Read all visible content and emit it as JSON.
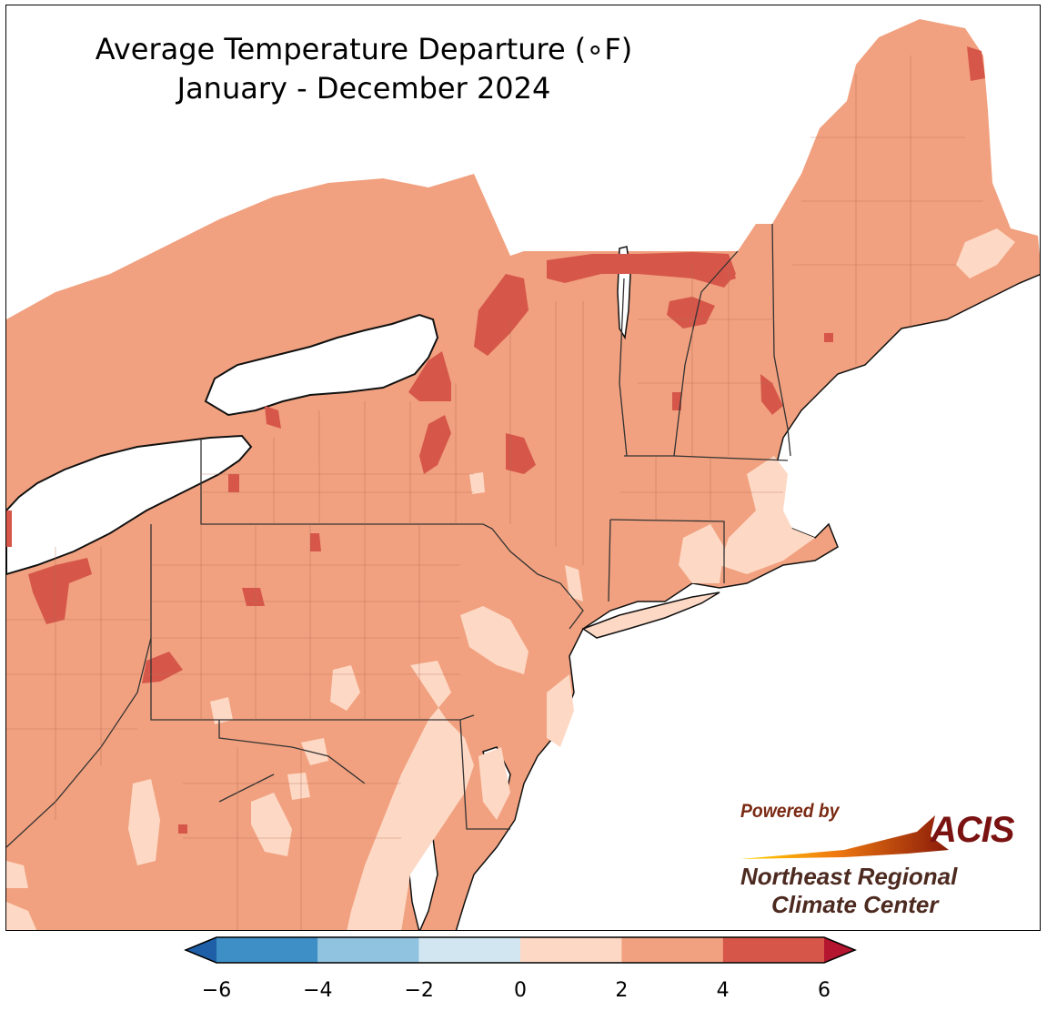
{
  "title": {
    "line1": "Average Temperature Departure ($^\\circ$F)",
    "line1_display": "Average Temperature Departure (∘F)",
    "line2": "January - December 2024"
  },
  "colors": {
    "bin_-6_-4": "#3d8fc6",
    "bin_-4_-2": "#8fc3df",
    "bin_-2_0": "#d2e6f1",
    "bin_0_2": "#fdd9c5",
    "bin_2_4": "#f1a17f",
    "bin_4_6": "#d6574a",
    "over_6": "#b5162f",
    "under_-6": "#1f5fa8",
    "water": "#ffffff",
    "boundary": "#000000"
  },
  "colorbar": {
    "ticks": [
      "−6",
      "−4",
      "−2",
      "0",
      "2",
      "4",
      "6"
    ],
    "tick_values": [
      -6,
      -4,
      -2,
      0,
      2,
      4,
      6
    ],
    "bins": [
      {
        "from": -6,
        "to": -4,
        "color": "#3d8fc6"
      },
      {
        "from": -4,
        "to": -2,
        "color": "#8fc3df"
      },
      {
        "from": -2,
        "to": 0,
        "color": "#d2e6f1"
      },
      {
        "from": 0,
        "to": 2,
        "color": "#fdd9c5"
      },
      {
        "from": 2,
        "to": 4,
        "color": "#f1a17f"
      },
      {
        "from": 4,
        "to": 6,
        "color": "#d6574a"
      }
    ],
    "extend_low_color": "#1f5fa8",
    "extend_high_color": "#b5162f"
  },
  "logo": {
    "powered_by": "Powered by",
    "acis": "ACIS",
    "org_line1": "Northeast Regional",
    "org_line2": "Climate Center"
  }
}
